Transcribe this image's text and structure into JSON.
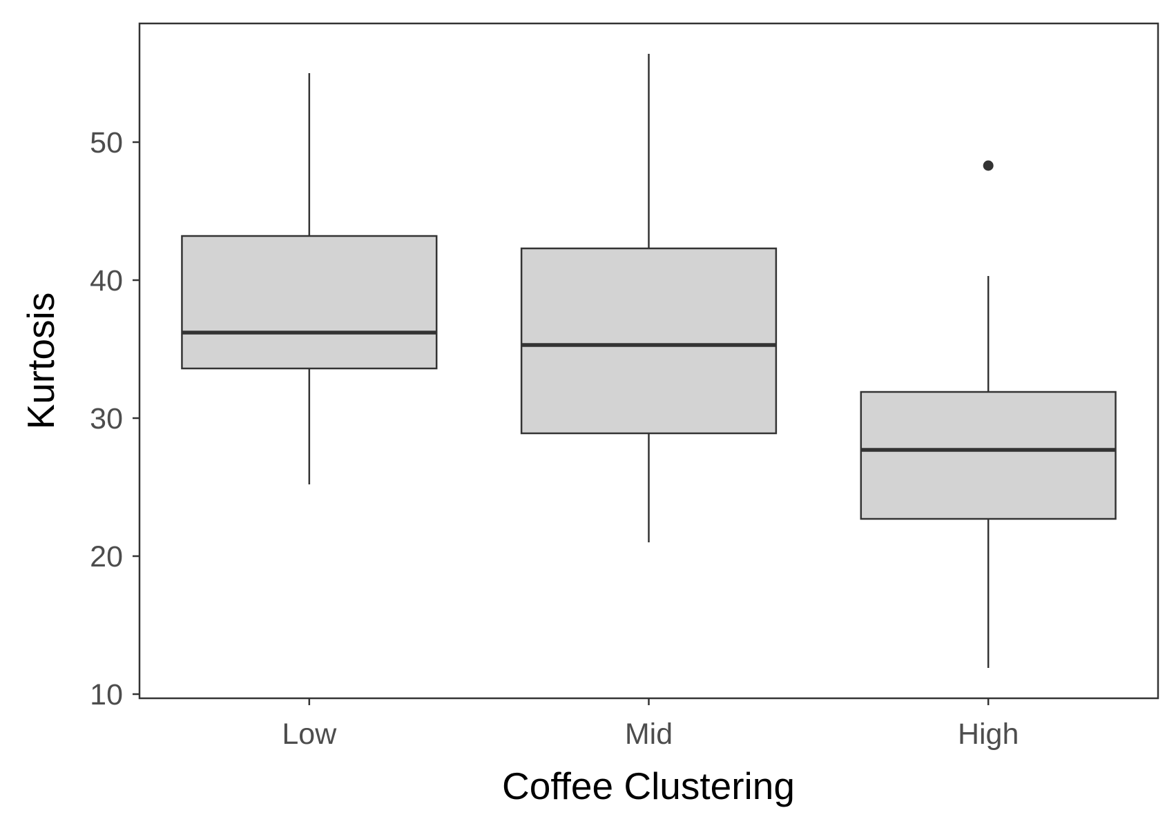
{
  "chart_data": {
    "type": "boxplot",
    "xlabel": "Coffee Clustering",
    "ylabel": "Kurtosis",
    "categories": [
      "Low",
      "Mid",
      "High"
    ],
    "ylim": [
      9.7,
      58.6
    ],
    "yticks": [
      10,
      20,
      30,
      40,
      50
    ],
    "grid": false,
    "boxes": [
      {
        "category": "Low",
        "whisker_low": 25.2,
        "q1": 33.6,
        "median": 36.2,
        "q3": 43.2,
        "whisker_high": 55.0,
        "outliers": []
      },
      {
        "category": "Mid",
        "whisker_low": 21.0,
        "q1": 28.9,
        "median": 35.3,
        "q3": 42.3,
        "whisker_high": 56.4,
        "outliers": []
      },
      {
        "category": "High",
        "whisker_low": 11.9,
        "q1": 22.7,
        "median": 27.7,
        "q3": 31.9,
        "whisker_high": 40.3,
        "outliers": [
          48.3
        ]
      }
    ],
    "box_fill": "#d3d3d3",
    "line_color": "#333333"
  }
}
